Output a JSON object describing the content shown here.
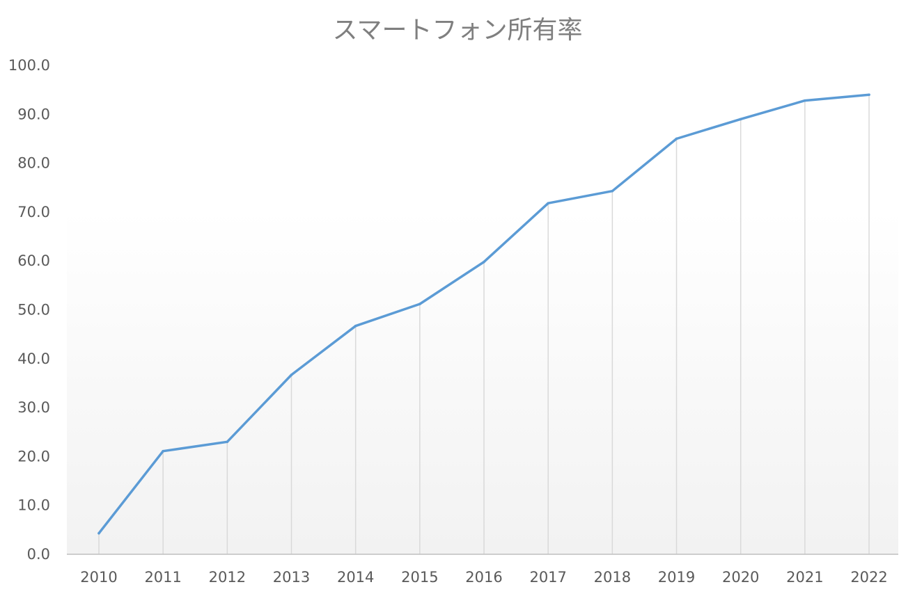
{
  "colors": {
    "series": "#5b9bd5",
    "drop_lines": "#d9d9d9",
    "axis": "#bfbfbf",
    "text": "#595959",
    "title": "#7f7f7f",
    "plot_bg_top": "#ffffff",
    "plot_bg_bottom": "#f2f2f2"
  },
  "chart_data": {
    "type": "line",
    "title": "スマートフォン所有率",
    "xlabel": "",
    "ylabel": "",
    "categories": [
      "2010",
      "2011",
      "2012",
      "2013",
      "2014",
      "2015",
      "2016",
      "2017",
      "2018",
      "2019",
      "2020",
      "2021",
      "2022"
    ],
    "series": [
      {
        "values": [
          4.3,
          21.1,
          23.0,
          36.7,
          46.7,
          51.2,
          59.8,
          71.8,
          74.3,
          85.0,
          89.0,
          92.8,
          94.0
        ]
      }
    ],
    "ylim": [
      0,
      100
    ],
    "yticks": [
      "0.0",
      "10.0",
      "20.0",
      "30.0",
      "40.0",
      "50.0",
      "60.0",
      "70.0",
      "80.0",
      "90.0",
      "100.0"
    ],
    "grid": false,
    "drop_lines": true,
    "legend": "none"
  }
}
